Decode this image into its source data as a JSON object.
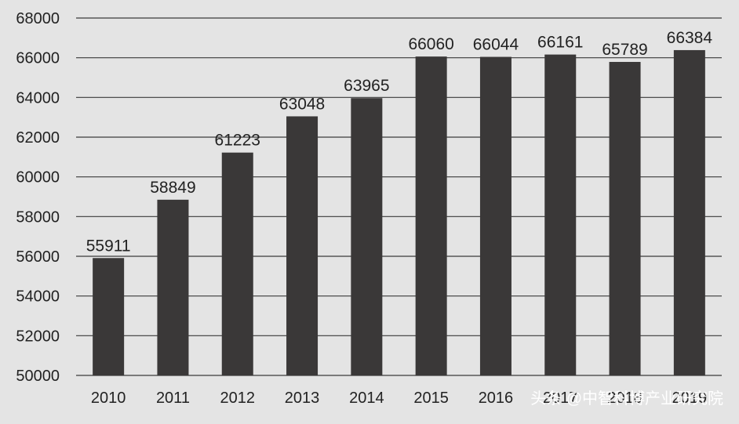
{
  "chart_data": {
    "type": "bar",
    "title": "",
    "xlabel": "",
    "ylabel": "",
    "categories": [
      "2010",
      "2011",
      "2012",
      "2013",
      "2014",
      "2015",
      "2016",
      "2017",
      "2018",
      "2019"
    ],
    "values": [
      55911,
      58849,
      61223,
      63048,
      63965,
      66060,
      66044,
      66161,
      65789,
      66384
    ],
    "data_labels": [
      "55911",
      "58849",
      "61223",
      "63048",
      "63965",
      "66060",
      "66044",
      "66161",
      "65789",
      "66384"
    ],
    "ylim": [
      50000,
      68000
    ],
    "yticks": [
      50000,
      52000,
      54000,
      56000,
      58000,
      60000,
      62000,
      64000,
      66000,
      68000
    ],
    "ytick_labels": [
      "50000",
      "52000",
      "54000",
      "56000",
      "58000",
      "60000",
      "62000",
      "64000",
      "66000",
      "68000"
    ],
    "grid": true,
    "legend": "none",
    "colors": {
      "background": "#e4e4e4",
      "bar": "#3a3838",
      "grid": "#3a3a3a",
      "text": "#222222"
    }
  },
  "watermark": {
    "text": "头条 @中智科博产业研究院"
  }
}
